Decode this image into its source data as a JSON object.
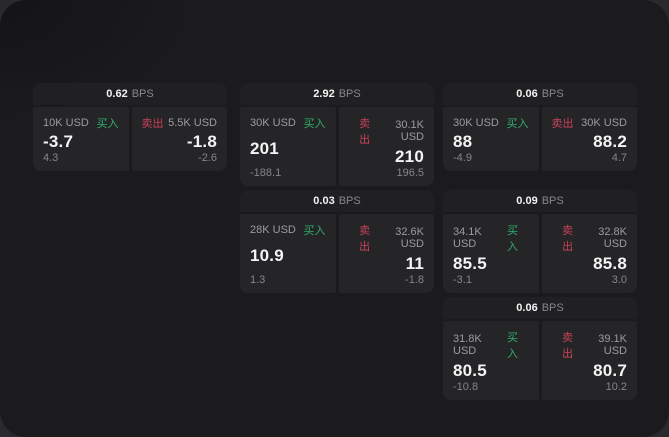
{
  "labels": {
    "bps": "BPS",
    "buy": "买入",
    "sell": "卖出"
  },
  "colors": {
    "background_outer": "#2a2a2e",
    "background_surface": "#1b1b1d",
    "card_header": "#202022",
    "panel": "#252528",
    "buy_green": "#2fae68",
    "sell_red": "#c94159",
    "text_primary": "#f4f4f5",
    "text_secondary": "#9c9ca0",
    "text_dim": "#85858a"
  },
  "cards": [
    {
      "bps": "0.62",
      "buy": {
        "size": "10K USD",
        "price": "-3.7",
        "delta": "4.3"
      },
      "sell": {
        "size": "5.5K USD",
        "price": "-1.8",
        "delta": "-2.6"
      }
    },
    {
      "bps": "2.92",
      "buy": {
        "size": "30K USD",
        "price": "201",
        "delta": "-188.1"
      },
      "sell": {
        "size": "30.1K USD",
        "price": "210",
        "delta": "196.5"
      }
    },
    {
      "bps": "0.06",
      "buy": {
        "size": "30K USD",
        "price": "88",
        "delta": "-4.9"
      },
      "sell": {
        "size": "30K USD",
        "price": "88.2",
        "delta": "4.7"
      }
    },
    {
      "bps": "0.03",
      "buy": {
        "size": "28K USD",
        "price": "10.9",
        "delta": "1.3"
      },
      "sell": {
        "size": "32.6K USD",
        "price": "11",
        "delta": "-1.8"
      }
    },
    {
      "bps": "0.09",
      "buy": {
        "size": "34.1K USD",
        "price": "85.5",
        "delta": "-3.1"
      },
      "sell": {
        "size": "32.8K USD",
        "price": "85.8",
        "delta": "3.0"
      }
    },
    {
      "bps": "0.06",
      "buy": {
        "size": "31.8K USD",
        "price": "80.5",
        "delta": "-10.8"
      },
      "sell": {
        "size": "39.1K USD",
        "price": "80.7",
        "delta": "10.2"
      }
    }
  ]
}
